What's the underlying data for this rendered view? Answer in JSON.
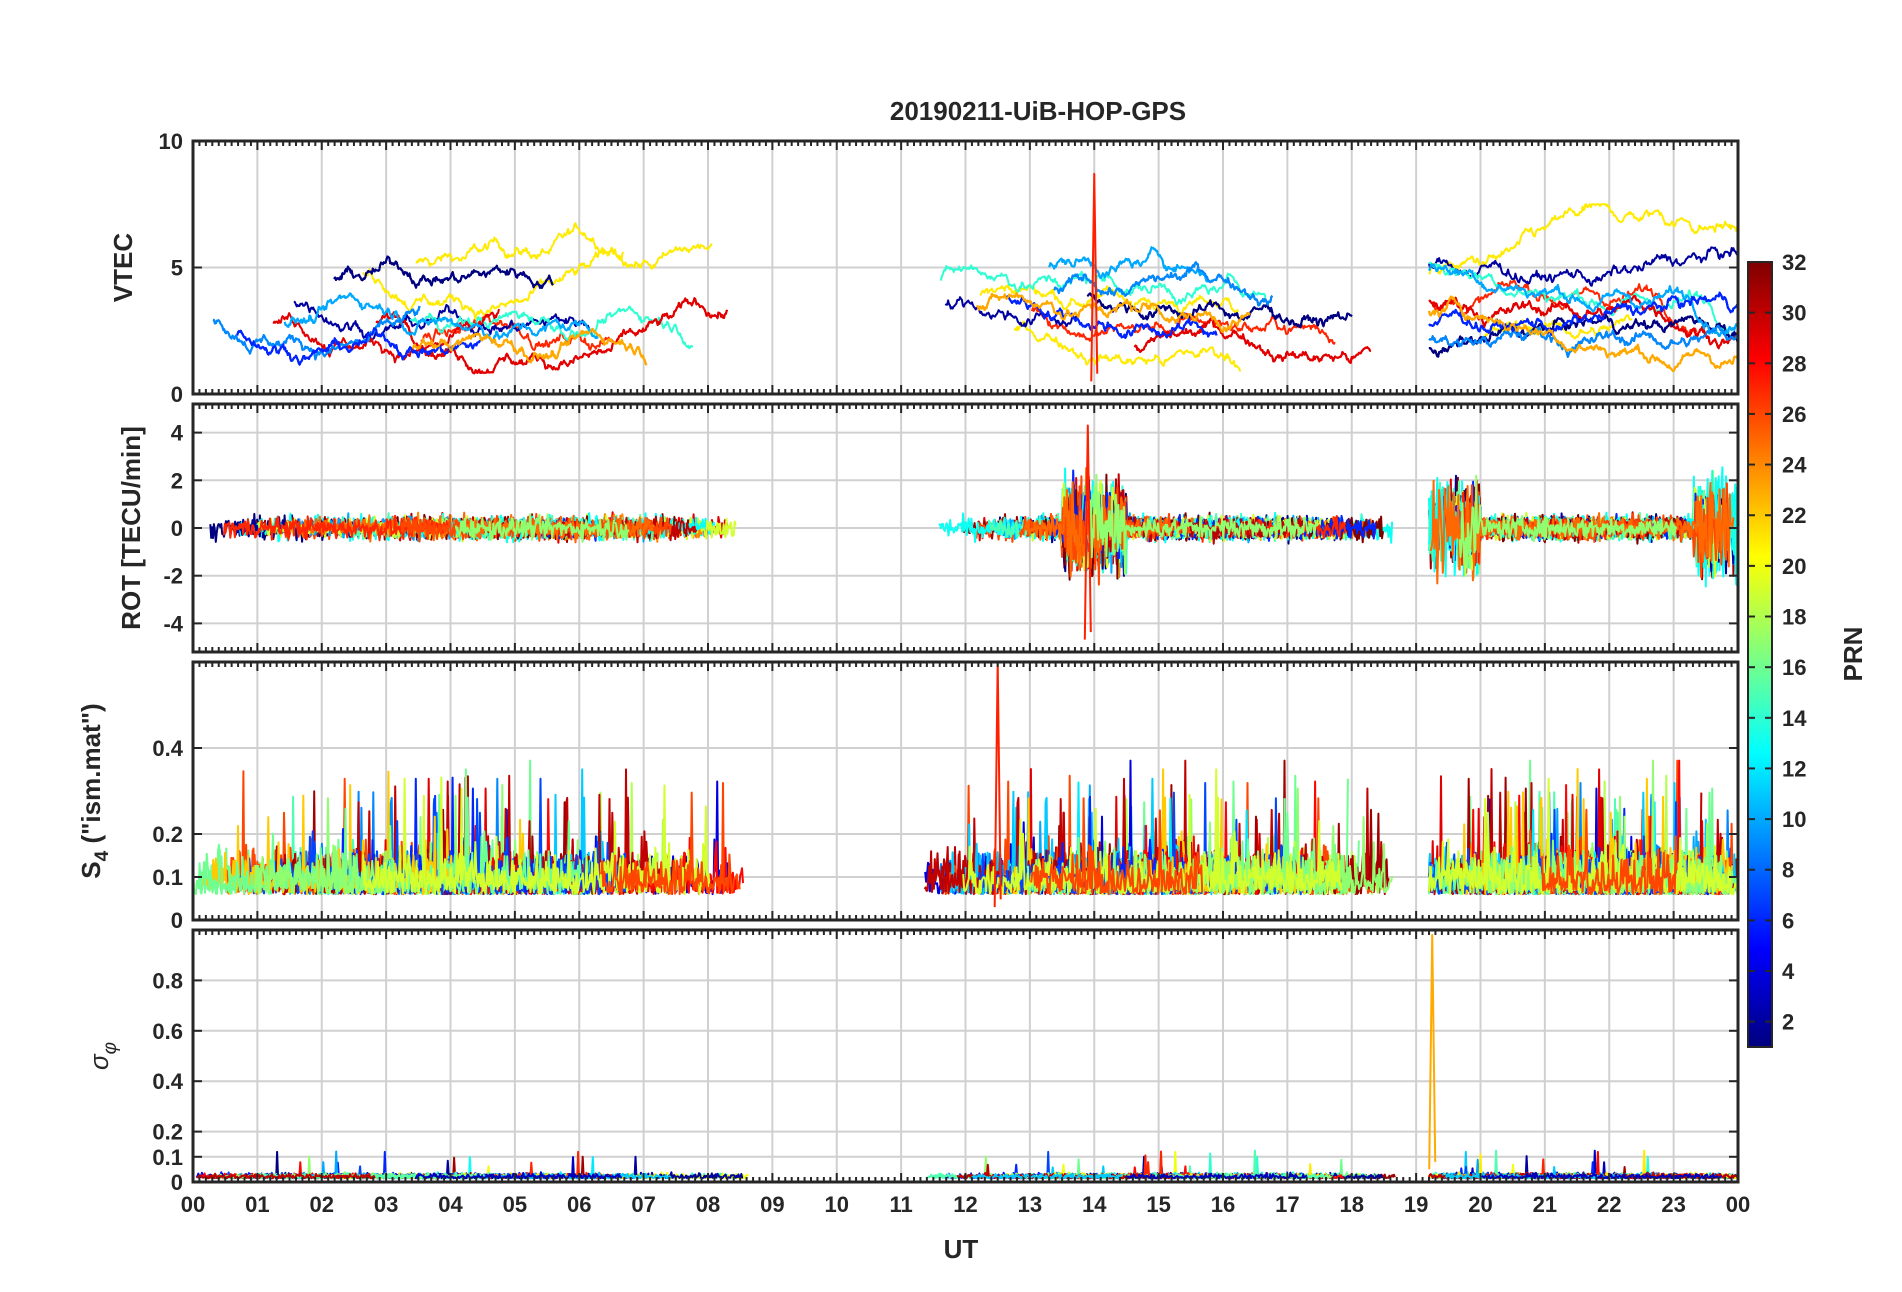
{
  "chart_data": {
    "type": "line",
    "title": "20190211-UiB-HOP-GPS",
    "xlabel": "UT",
    "x_ticks": [
      "00",
      "01",
      "02",
      "03",
      "04",
      "05",
      "06",
      "07",
      "08",
      "09",
      "10",
      "11",
      "12",
      "13",
      "14",
      "15",
      "16",
      "17",
      "18",
      "19",
      "20",
      "21",
      "22",
      "23",
      "00"
    ],
    "xlim_hours": [
      0,
      24
    ],
    "grid": true,
    "colorbar": {
      "label": "PRN",
      "range": [
        1,
        32
      ],
      "ticks": [
        "2",
        "4",
        "6",
        "8",
        "10",
        "12",
        "14",
        "16",
        "18",
        "20",
        "22",
        "24",
        "26",
        "28",
        "30",
        "32"
      ],
      "colormap": "jet",
      "placement": "right"
    },
    "data_intervals_hours": [
      [
        0.0,
        8.7
      ],
      [
        11.3,
        18.7
      ],
      [
        19.2,
        24.0
      ]
    ],
    "panels": [
      {
        "name": "vtec",
        "ylabel": "VTEC",
        "ylim": [
          0,
          10
        ],
        "ytick_values": [
          0,
          5,
          10
        ],
        "yticks": [
          "0",
          "5",
          "10"
        ],
        "typical_range": [
          1,
          6
        ],
        "peak_value": 8.7,
        "peak_time_hours": 14.0
      },
      {
        "name": "rot",
        "ylabel": "ROT [TECU/min]",
        "ylim": [
          -5.2,
          5.2
        ],
        "ytick_values": [
          -4,
          -2,
          0,
          2,
          4
        ],
        "yticks": [
          "-4",
          "-2",
          "0",
          "2",
          "4"
        ],
        "typical_amplitude": 0.5,
        "peak_value": 4.3,
        "peak_time_hours": 13.9
      },
      {
        "name": "s4",
        "ylabel_main": "S",
        "ylabel_sub": "4",
        "ylabel_tail": " (\"ism.mat\")",
        "ylim": [
          0,
          0.6
        ],
        "ytick_values": [
          0,
          0.1,
          0.2,
          0.4
        ],
        "yticks": [
          "0",
          "0.1",
          "0.2",
          "0.4"
        ],
        "typical_range": [
          0.05,
          0.3
        ],
        "peak_value": 0.6,
        "peak_time_hours": 12.5
      },
      {
        "name": "sigma-phi",
        "ylabel_main": "σ",
        "ylabel_sub": "φ",
        "ylim": [
          0,
          1.0
        ],
        "ytick_values": [
          0,
          0.1,
          0.2,
          0.4,
          0.6,
          0.8
        ],
        "yticks": [
          "0",
          "0.1",
          "0.2",
          "0.4",
          "0.6",
          "0.8"
        ],
        "typical_range": [
          0.0,
          0.05
        ],
        "peak_value": 0.98,
        "peak_time_hours": 19.25
      }
    ]
  }
}
